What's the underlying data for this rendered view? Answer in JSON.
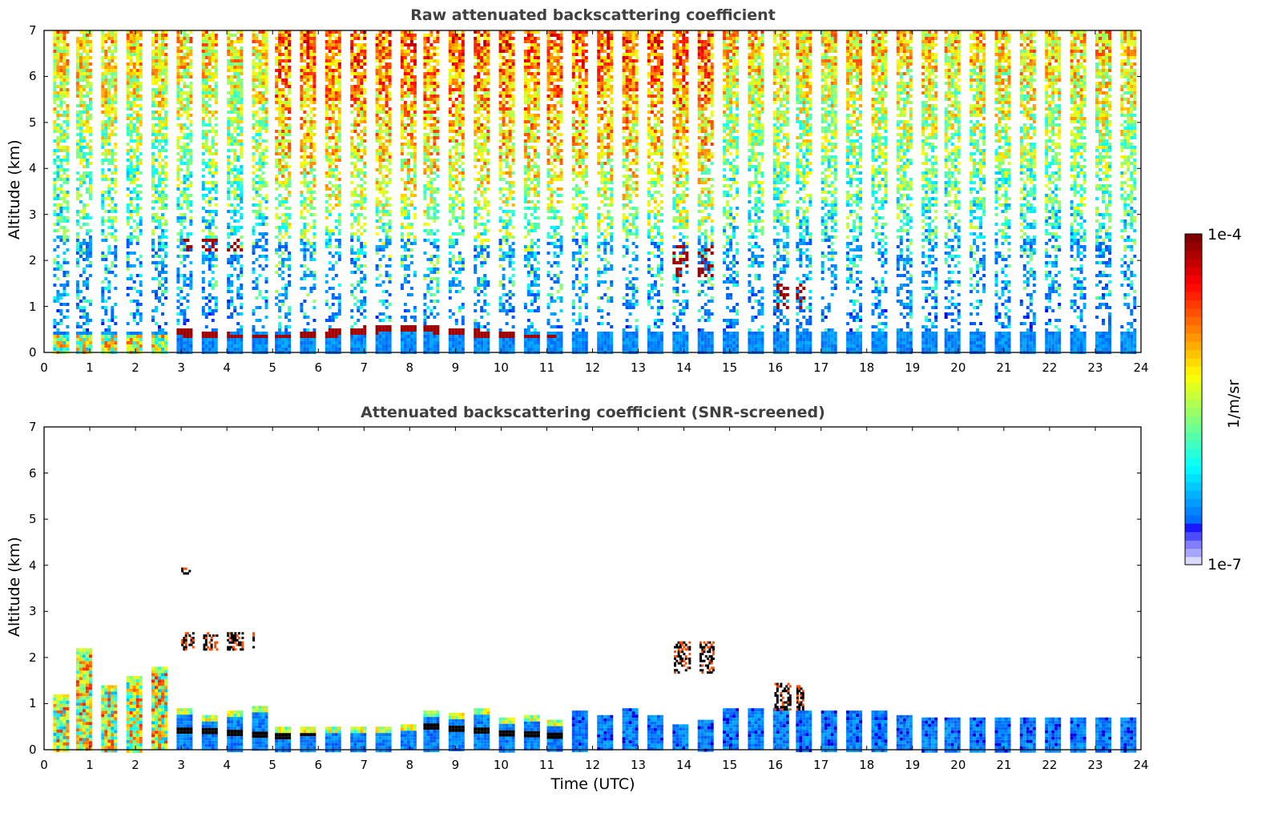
{
  "figure": {
    "panels": [
      {
        "id": "raw",
        "title": "Raw attenuated backscattering coefficient",
        "ylabel": "Altitude (km)",
        "xlabel": ""
      },
      {
        "id": "screened",
        "title": "Attenuated backscattering coefficient (SNR-screened)",
        "ylabel": "Altitude (km)",
        "xlabel": "Time (UTC)"
      }
    ],
    "colorbar": {
      "label": "1/m/sr",
      "max_label": "1e-4",
      "min_label": "1e-7",
      "scale": "log",
      "colormap": "jet",
      "range": [
        1e-07,
        0.0001
      ]
    }
  },
  "chart_data": [
    {
      "type": "heatmap",
      "title": "Raw attenuated backscattering coefficient",
      "xlabel": "",
      "ylabel": "Altitude (km)",
      "xlim": [
        0,
        24
      ],
      "ylim": [
        0,
        7
      ],
      "xticks": [
        "0",
        "1",
        "2",
        "3",
        "4",
        "5",
        "6",
        "7",
        "8",
        "9",
        "10",
        "11",
        "12",
        "13",
        "14",
        "15",
        "16",
        "17",
        "18",
        "19",
        "20",
        "21",
        "22",
        "23",
        "24"
      ],
      "yticks": [
        "0",
        "1",
        "2",
        "3",
        "4",
        "5",
        "6",
        "7"
      ],
      "profile_interval_hours": 0.5,
      "profile_width_hours": 0.35,
      "profile_starts": [
        0.2,
        0.7,
        1.25,
        1.8,
        2.35,
        2.9,
        3.45,
        4.0,
        4.55,
        5.05,
        5.6,
        6.15,
        6.7,
        7.25,
        7.8,
        8.3,
        8.85,
        9.4,
        9.95,
        10.5,
        11.0,
        11.55,
        12.1,
        12.65,
        13.2,
        13.75,
        14.3,
        14.85,
        15.4,
        15.95,
        16.45,
        17.0,
        17.55,
        18.1,
        18.65,
        19.2,
        19.7,
        20.25,
        20.8,
        21.35,
        21.9,
        22.45,
        23.0,
        23.55
      ],
      "colorbar": {
        "label": "1/m/sr",
        "range": [
          1e-07,
          0.0001
        ],
        "scale": "log"
      },
      "features": [
        {
          "name": "boundary layer aerosol",
          "time_range": [
            0,
            24
          ],
          "altitude_km": [
            0,
            0.6
          ],
          "level": "low (blue)"
        },
        {
          "name": "cloud layer",
          "time_range": [
            2.9,
            11.2
          ],
          "altitude_km": [
            0.35,
            0.8
          ],
          "level": "1e-4 (dark red)"
        },
        {
          "name": "low clouds / precipitation",
          "time_range": [
            0.2,
            2.7
          ],
          "altitude_km": [
            0,
            2.5
          ],
          "level": "high"
        },
        {
          "name": "cloud",
          "time_range": [
            3.0,
            4.4
          ],
          "altitude_km": [
            2.2,
            2.5
          ],
          "level": "1e-4"
        },
        {
          "name": "cloud",
          "time_range": [
            13.7,
            14.7
          ],
          "altitude_km": [
            1.7,
            2.35
          ],
          "level": "1e-4"
        },
        {
          "name": "cloud",
          "time_range": [
            16.0,
            16.6
          ],
          "altitude_km": [
            1.0,
            1.5
          ],
          "level": "1e-4"
        },
        {
          "name": "noisy free troposphere (daytime)",
          "time_range": [
            5.0,
            14.5
          ],
          "altitude_km": [
            3.5,
            7
          ],
          "level": "high noise (red/orange)"
        },
        {
          "name": "noisy free troposphere",
          "time_range": [
            0,
            24
          ],
          "altitude_km": [
            1,
            7
          ],
          "level": "mid noise (green/yellow)"
        }
      ]
    },
    {
      "type": "heatmap",
      "title": "Attenuated backscattering coefficient (SNR-screened)",
      "xlabel": "Time (UTC)",
      "ylabel": "Altitude (km)",
      "xlim": [
        0,
        24
      ],
      "ylim": [
        0,
        7
      ],
      "xticks": [
        "0",
        "1",
        "2",
        "3",
        "4",
        "5",
        "6",
        "7",
        "8",
        "9",
        "10",
        "11",
        "12",
        "13",
        "14",
        "15",
        "16",
        "17",
        "18",
        "19",
        "20",
        "21",
        "22",
        "23",
        "24"
      ],
      "yticks": [
        "0",
        "1",
        "2",
        "3",
        "4",
        "5",
        "6",
        "7"
      ],
      "colorbar": {
        "label": "1/m/sr",
        "range": [
          1e-07,
          0.0001
        ],
        "scale": "log"
      },
      "layer_top_km": [
        1.2,
        2.2,
        1.4,
        1.6,
        1.8,
        0.9,
        0.75,
        0.85,
        0.95,
        0.5,
        0.5,
        0.5,
        0.5,
        0.5,
        0.55,
        0.85,
        0.8,
        0.9,
        0.7,
        0.75,
        0.65,
        0.85,
        0.75,
        0.9,
        0.75,
        0.55,
        0.65,
        0.9,
        0.9,
        0.9,
        0.85,
        0.85,
        0.85,
        0.85,
        0.75,
        0.7,
        0.7,
        0.7,
        0.7,
        0.7,
        0.7,
        0.7,
        0.7,
        0.7
      ],
      "features": [
        {
          "name": "cloud",
          "time_range": [
            3.0,
            3.2
          ],
          "altitude_km": [
            3.85,
            3.95
          ]
        },
        {
          "name": "cloud",
          "time_range": [
            3.0,
            4.6
          ],
          "altitude_km": [
            2.2,
            2.55
          ]
        },
        {
          "name": "cloud",
          "time_range": [
            13.7,
            14.7
          ],
          "altitude_km": [
            1.7,
            2.35
          ]
        },
        {
          "name": "cloud",
          "time_range": [
            15.9,
            16.6
          ],
          "altitude_km": [
            0.9,
            1.5
          ]
        }
      ]
    }
  ]
}
